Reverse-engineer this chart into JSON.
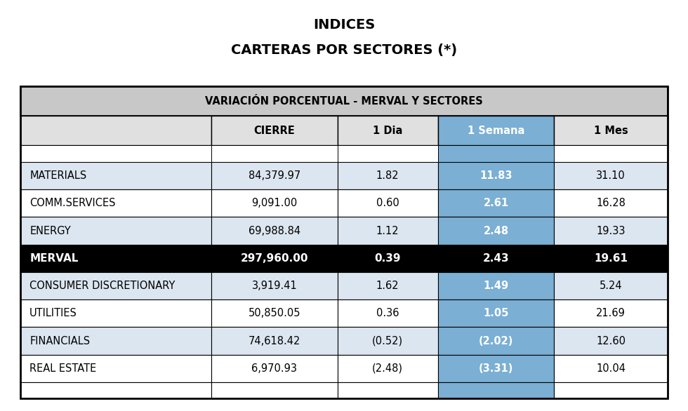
{
  "title_line1": "INDICES",
  "title_line2": "CARTERAS POR SECTORES (*)",
  "table_header": "VARIACIÓN PORCENTUAL - MERVAL Y SECTORES",
  "col_headers": [
    "",
    "CIERRE",
    "1 Dia",
    "1 Semana",
    "1 Mes"
  ],
  "rows": [
    [
      "MATERIALS",
      "84,379.97",
      "1.82",
      "11.83",
      "31.10"
    ],
    [
      "COMM.SERVICES",
      "9,091.00",
      "0.60",
      "2.61",
      "16.28"
    ],
    [
      "ENERGY",
      "69,988.84",
      "1.12",
      "2.48",
      "19.33"
    ],
    [
      "MERVAL",
      "297,960.00",
      "0.39",
      "2.43",
      "19.61"
    ],
    [
      "CONSUMER DISCRETIONARY",
      "3,919.41",
      "1.62",
      "1.49",
      "5.24"
    ],
    [
      "UTILITIES",
      "50,850.05",
      "0.36",
      "1.05",
      "21.69"
    ],
    [
      "FINANCIALS",
      "74,618.42",
      "(0.52)",
      "(2.02)",
      "12.60"
    ],
    [
      "REAL ESTATE",
      "6,970.93",
      "(2.48)",
      "(3.31)",
      "10.04"
    ]
  ],
  "merval_row_index": 3,
  "blue_col_index": 3,
  "color_header_bg": "#c8c8c8",
  "color_col_header_bg": "#e0e0e0",
  "color_row_odd": "#dce6f0",
  "color_row_even": "#ffffff",
  "color_merval_bg": "#000000",
  "color_merval_fg": "#ffffff",
  "color_blue_cell": "#7bafd4",
  "color_blue_text": "#ffffff",
  "color_border": "#000000",
  "bg_color": "#ffffff",
  "title_fontsize": 14,
  "header_fontsize": 10.5,
  "cell_fontsize": 10.5,
  "col_props": [
    0.295,
    0.195,
    0.155,
    0.18,
    0.175
  ]
}
